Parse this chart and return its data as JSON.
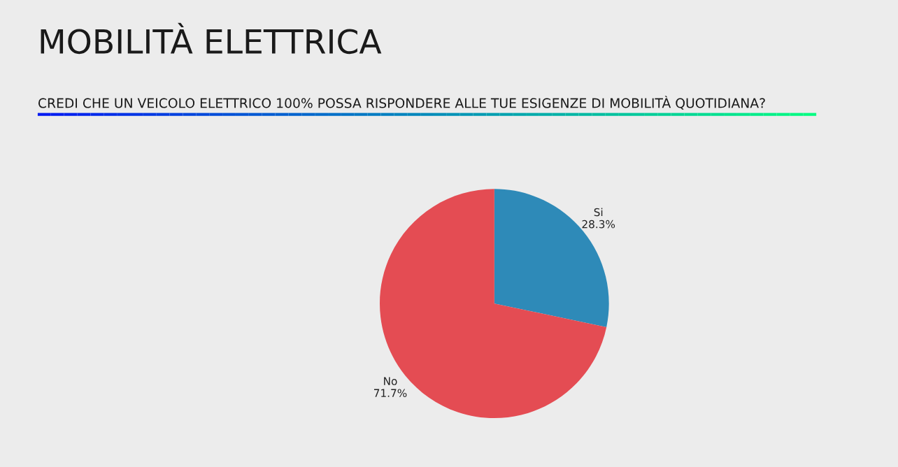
{
  "chart_data": {
    "type": "pie",
    "title": "MOBILITÀ ELETTRICA",
    "subtitle": "CREDI CHE UN VEICOLO ELETTRICO 100% POSSA RISPONDERE ALLE TUE ESIGENZE DI MOBILITÀ QUOTIDIANA?",
    "categories": [
      "Si",
      "No"
    ],
    "values": [
      28.3,
      71.7
    ],
    "colors": [
      "#2e8ab8",
      "#e44c53"
    ],
    "value_labels": [
      "28.3%",
      "71.7%"
    ]
  }
}
